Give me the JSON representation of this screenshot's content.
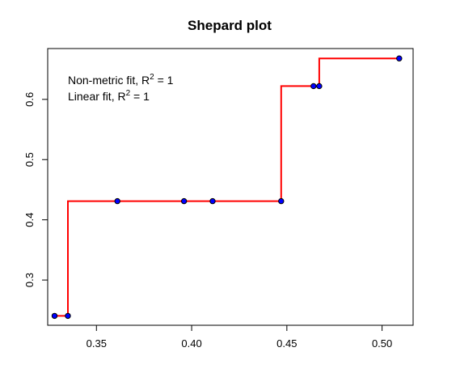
{
  "chart_data": {
    "type": "scatter",
    "title": "Shepard plot",
    "xlabel": "",
    "ylabel": "",
    "xlim": [
      0.3244,
      0.5163
    ],
    "ylim": [
      0.2249,
      0.6844
    ],
    "xticks": [
      0.35,
      0.4,
      0.45,
      0.5
    ],
    "xtick_labels": [
      "0.35",
      "0.40",
      "0.45",
      "0.50"
    ],
    "yticks": [
      0.3,
      0.4,
      0.5,
      0.6
    ],
    "ytick_labels": [
      "0.3",
      "0.4",
      "0.5",
      "0.6"
    ],
    "grid": false,
    "points": {
      "x": [
        0.328,
        0.335,
        0.361,
        0.396,
        0.411,
        0.447,
        0.464,
        0.467,
        0.509
      ],
      "y": [
        0.2405,
        0.2405,
        0.431,
        0.431,
        0.431,
        0.431,
        0.622,
        0.622,
        0.668
      ],
      "fill_color": "#0000ff",
      "stroke_color": "#000000"
    },
    "fit_line": {
      "type": "step",
      "color": "#ff0000",
      "x": [
        0.328,
        0.335,
        0.335,
        0.447,
        0.447,
        0.467,
        0.467,
        0.509
      ],
      "y": [
        0.2405,
        0.2405,
        0.431,
        0.431,
        0.622,
        0.622,
        0.668,
        0.668
      ]
    },
    "annotations": [
      {
        "prefix": "Non-metric fit, R",
        "sup": "2",
        "suffix": " = 1"
      },
      {
        "prefix": "Linear fit, R",
        "sup": "2",
        "suffix": " = 1"
      }
    ]
  }
}
